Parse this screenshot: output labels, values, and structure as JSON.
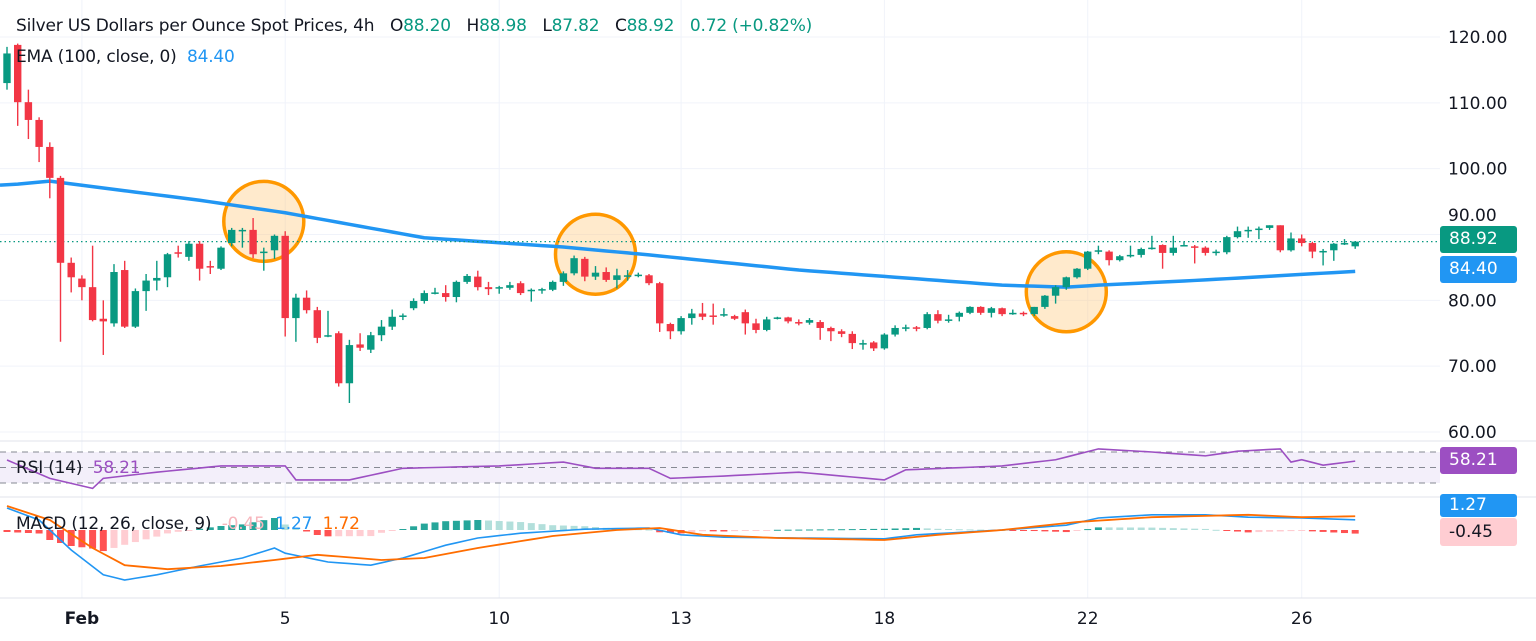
{
  "header": {
    "symbol_title": "Silver US Dollars per Ounce Spot Prices, 4h",
    "open_label": "O",
    "open": "88.20",
    "high_label": "H",
    "high": "88.98",
    "low_label": "L",
    "low": "87.82",
    "close_label": "C",
    "close": "88.92",
    "change": "0.72 (+0.82%)"
  },
  "ema_legend": {
    "label": "EMA (100, close, 0)",
    "value": "84.40"
  },
  "rsi_legend": {
    "label": "RSI (14)",
    "value": "58.21"
  },
  "macd_legend": {
    "label": "MACD (12, 26, close, 9)",
    "histogram": "-0.45",
    "macd": "1.27",
    "signal": "1.72"
  },
  "badges": {
    "last_price": "88.92",
    "ema": "84.40",
    "rsi": "58.21",
    "macd": "1.27",
    "histogram": "-0.45"
  },
  "colors": {
    "up": "#089981",
    "down": "#f23645",
    "ema": "#2196f3",
    "rsi": "#9c4fc2",
    "macd": "#2196f3",
    "signal": "#ff6d00",
    "highlight": "#ff9800"
  },
  "chart_data": {
    "type": "candlestick",
    "price_axis": {
      "ticks": [
        "120.00",
        "110.00",
        "100.00",
        "90.00",
        "80.00",
        "70.00",
        "60.00"
      ],
      "tick_values": [
        120,
        110,
        100,
        90,
        80,
        70,
        60
      ],
      "range": [
        60,
        120
      ]
    },
    "time_axis": {
      "labels": [
        [
          "Feb",
          7
        ],
        [
          "5",
          26
        ],
        [
          "10",
          46
        ],
        [
          "13",
          63
        ],
        [
          "18",
          82
        ],
        [
          "22",
          101
        ],
        [
          "26",
          121
        ]
      ]
    },
    "grid": true,
    "candles_ohlc": [
      [
        113,
        118.5,
        112,
        117.5
      ],
      [
        118.8,
        119,
        106.5,
        110.1
      ],
      [
        110.1,
        112,
        104.5,
        107.4
      ],
      [
        107.4,
        107.8,
        101,
        103.3
      ],
      [
        103.3,
        104,
        95.5,
        98.6
      ],
      [
        98.6,
        98.9,
        73.7,
        85.7
      ],
      [
        85.7,
        86.5,
        81.2,
        83.5
      ],
      [
        83.3,
        83.8,
        80,
        82
      ],
      [
        82,
        88.3,
        76.8,
        77
      ],
      [
        77.2,
        80,
        71.7,
        76.8
      ],
      [
        76.5,
        85.5,
        76,
        84.3
      ],
      [
        84.6,
        86,
        75.8,
        76
      ],
      [
        76,
        81.8,
        75.8,
        81.4
      ],
      [
        81.4,
        84,
        78.4,
        83
      ],
      [
        83,
        86,
        81.5,
        83.4
      ],
      [
        83.5,
        87.2,
        82,
        87
      ],
      [
        87.3,
        88.3,
        86.5,
        87.2
      ],
      [
        86.6,
        89,
        86,
        88.6
      ],
      [
        88.6,
        89,
        83,
        84.8
      ],
      [
        85.2,
        86,
        84,
        85
      ],
      [
        84.8,
        88.2,
        84.6,
        88
      ],
      [
        88.7,
        91,
        88.2,
        90.7
      ],
      [
        90.6,
        91,
        88,
        90.7
      ],
      [
        90.7,
        92.5,
        86.4,
        87
      ],
      [
        87.2,
        88,
        84.5,
        87.4
      ],
      [
        87.6,
        90,
        86.3,
        89.8
      ],
      [
        89.8,
        90.5,
        74.5,
        77.3
      ],
      [
        77.3,
        81,
        73.7,
        80.4
      ],
      [
        80.4,
        81.5,
        78,
        78.5
      ],
      [
        78.5,
        79,
        73.5,
        74.3
      ],
      [
        74.5,
        78.4,
        74.4,
        74.7
      ],
      [
        75,
        75.3,
        66.9,
        67.4
      ],
      [
        67.4,
        74,
        64.4,
        73.2
      ],
      [
        73.3,
        75,
        72.3,
        72.8
      ],
      [
        72.5,
        75.2,
        72,
        74.7
      ],
      [
        74.7,
        77,
        73.8,
        76
      ],
      [
        76,
        78.6,
        75.5,
        77.5
      ],
      [
        77.6,
        78,
        77,
        77.7
      ],
      [
        78.8,
        80.3,
        78.5,
        79.9
      ],
      [
        79.9,
        81.5,
        79.5,
        81.1
      ],
      [
        81.1,
        81.9,
        80.9,
        81.2
      ],
      [
        81.1,
        82.3,
        79.8,
        80.5
      ],
      [
        80.5,
        83,
        79.7,
        82.8
      ],
      [
        82.8,
        84,
        82.5,
        83.7
      ],
      [
        83.6,
        84.5,
        81.5,
        82
      ],
      [
        82,
        82.8,
        80.8,
        81.7
      ],
      [
        81.8,
        82.2,
        81,
        82
      ],
      [
        81.9,
        82.8,
        81.6,
        82.3
      ],
      [
        82.6,
        82.9,
        80.8,
        81.1
      ],
      [
        81.5,
        81.8,
        79.8,
        81.6
      ],
      [
        81.5,
        81.9,
        81,
        81.7
      ],
      [
        81.6,
        83,
        81.4,
        82.8
      ],
      [
        82.8,
        84.4,
        82.2,
        84.1
      ],
      [
        84.1,
        86.8,
        83.8,
        86.4
      ],
      [
        86.3,
        86.6,
        82.9,
        83.6
      ],
      [
        83.6,
        85.2,
        83.1,
        84.2
      ],
      [
        84.3,
        85,
        82.8,
        83.1
      ],
      [
        83.1,
        84.8,
        81.8,
        83.8
      ],
      [
        83.8,
        84.6,
        83,
        83.8
      ],
      [
        83.8,
        84.2,
        83.5,
        83.9
      ],
      [
        83.8,
        84,
        82.3,
        82.6
      ],
      [
        82.6,
        82.8,
        75.2,
        76.5
      ],
      [
        76.4,
        76.6,
        74.1,
        75.3
      ],
      [
        75.3,
        77.6,
        74.8,
        77.3
      ],
      [
        77.3,
        78.7,
        76.3,
        78
      ],
      [
        78,
        79.6,
        77,
        77.5
      ],
      [
        77.7,
        79.5,
        76.3,
        77.6
      ],
      [
        77.7,
        78.8,
        77.5,
        77.9
      ],
      [
        77.6,
        77.8,
        77,
        77.2
      ],
      [
        78.2,
        78.6,
        74.8,
        76.5
      ],
      [
        76.5,
        77.2,
        75,
        75.5
      ],
      [
        75.5,
        77.5,
        75.3,
        77.1
      ],
      [
        77.3,
        77.5,
        77.1,
        77.4
      ],
      [
        77.4,
        77.5,
        76.5,
        76.8
      ],
      [
        76.7,
        77.1,
        76.2,
        76.6
      ],
      [
        76.6,
        77.3,
        76.3,
        77
      ],
      [
        76.7,
        77,
        74,
        75.8
      ],
      [
        75.8,
        76,
        73.8,
        75.3
      ],
      [
        75.3,
        75.6,
        74.4,
        74.9
      ],
      [
        74.9,
        75.3,
        72.6,
        73.5
      ],
      [
        73.4,
        74,
        72.5,
        73.5
      ],
      [
        73.6,
        73.8,
        72.3,
        72.7
      ],
      [
        72.7,
        75,
        72.5,
        74.8
      ],
      [
        74.8,
        76.2,
        74.5,
        75.8
      ],
      [
        75.8,
        76.3,
        75.3,
        75.9
      ],
      [
        75.9,
        76.1,
        75.3,
        75.8
      ],
      [
        75.8,
        78.2,
        75.6,
        77.9
      ],
      [
        77.9,
        78.5,
        76.5,
        76.9
      ],
      [
        76.9,
        77.8,
        76.6,
        77.1
      ],
      [
        77.5,
        78.3,
        76.8,
        78.1
      ],
      [
        78.1,
        79.1,
        77.9,
        79
      ],
      [
        79,
        79.1,
        77.8,
        78.1
      ],
      [
        78.1,
        79,
        77.4,
        78.8
      ],
      [
        78.8,
        78.9,
        77.6,
        77.9
      ],
      [
        78,
        78.6,
        77.8,
        78.1
      ],
      [
        78.1,
        78.3,
        77.6,
        77.9
      ],
      [
        77.9,
        79,
        77.6,
        79
      ],
      [
        79,
        80.8,
        78.7,
        80.7
      ],
      [
        80.7,
        82.3,
        79.5,
        82
      ],
      [
        82,
        83.6,
        81.6,
        83.5
      ],
      [
        83.5,
        84.9,
        83.3,
        84.8
      ],
      [
        84.8,
        87.5,
        84.6,
        87.4
      ],
      [
        87.5,
        88.3,
        87,
        87.6
      ],
      [
        87.4,
        87.6,
        85.3,
        86.1
      ],
      [
        86.1,
        86.9,
        85.9,
        86.7
      ],
      [
        86.8,
        88.3,
        86.5,
        86.9
      ],
      [
        86.9,
        88,
        86.5,
        87.8
      ],
      [
        87.9,
        89.8,
        87.7,
        88
      ],
      [
        88.4,
        88.5,
        84.8,
        87.2
      ],
      [
        87.2,
        89.8,
        86.8,
        88
      ],
      [
        88.3,
        88.9,
        88.2,
        88.4
      ],
      [
        88.2,
        88.4,
        85.6,
        88
      ],
      [
        88,
        88.2,
        86.8,
        87.2
      ],
      [
        87.2,
        87.7,
        86.8,
        87.4
      ],
      [
        87.3,
        89.8,
        87,
        89.6
      ],
      [
        89.6,
        91.2,
        89.4,
        90.5
      ],
      [
        90.6,
        91.2,
        89.5,
        90.7
      ],
      [
        90.8,
        91.2,
        89.3,
        90.9
      ],
      [
        91,
        91.4,
        90.7,
        91.4
      ],
      [
        91.4,
        91.4,
        87.3,
        87.6
      ],
      [
        87.6,
        90.3,
        87.4,
        89.4
      ],
      [
        89.4,
        90,
        88.2,
        88.7
      ],
      [
        88.7,
        88.9,
        86.4,
        87.4
      ],
      [
        87.5,
        87.8,
        85.3,
        87.5
      ],
      [
        87.6,
        88.7,
        86,
        88.6
      ],
      [
        88.7,
        89.3,
        88.4,
        88.7
      ],
      [
        88.2,
        88.98,
        87.82,
        88.92
      ]
    ],
    "ema100": [
      [
        0,
        97.5
      ],
      [
        4,
        98.1
      ],
      [
        18,
        95.2
      ],
      [
        26,
        93.3
      ],
      [
        39,
        89.5
      ],
      [
        52,
        88.1
      ],
      [
        60,
        86.9
      ],
      [
        74,
        84.6
      ],
      [
        93,
        82.3
      ],
      [
        99,
        82.0
      ],
      [
        102,
        82.3
      ],
      [
        112,
        83.1
      ],
      [
        126,
        84.4
      ]
    ],
    "highlights": [
      [
        24,
        92
      ],
      [
        55,
        87
      ],
      [
        99,
        81.3
      ]
    ],
    "rsi": {
      "levels": [
        70,
        50,
        30
      ],
      "points": [
        [
          0,
          59.7
        ],
        [
          4,
          36
        ],
        [
          8,
          23
        ],
        [
          9,
          36
        ],
        [
          14,
          44
        ],
        [
          20,
          52
        ],
        [
          26,
          52
        ],
        [
          27,
          34
        ],
        [
          32,
          34
        ],
        [
          37,
          49
        ],
        [
          46,
          52
        ],
        [
          52,
          57
        ],
        [
          55,
          49
        ],
        [
          60,
          49
        ],
        [
          62,
          36
        ],
        [
          67,
          39
        ],
        [
          74,
          44
        ],
        [
          82,
          34
        ],
        [
          84,
          47
        ],
        [
          93,
          52
        ],
        [
          98,
          60
        ],
        [
          102,
          74
        ],
        [
          107,
          70
        ],
        [
          112,
          65
        ],
        [
          115,
          71
        ],
        [
          119,
          74
        ],
        [
          120,
          57
        ],
        [
          121,
          60
        ],
        [
          123,
          53
        ],
        [
          126,
          58.21
        ]
      ]
    },
    "macd": {
      "zero": 0,
      "macd_line": [
        [
          0,
          2.75
        ],
        [
          3,
          1.25
        ],
        [
          6,
          -2.5
        ],
        [
          9,
          -5.6
        ],
        [
          11,
          -6.25
        ],
        [
          14,
          -5.6
        ],
        [
          18,
          -4.5
        ],
        [
          22,
          -3.5
        ],
        [
          25,
          -2.25
        ],
        [
          26,
          -2.9
        ],
        [
          30,
          -4
        ],
        [
          34,
          -4.4
        ],
        [
          37,
          -3.5
        ],
        [
          41,
          -1.9
        ],
        [
          44,
          -1
        ],
        [
          48,
          -0.4
        ],
        [
          54,
          0.1
        ],
        [
          60,
          0.25
        ],
        [
          63,
          -0.6
        ],
        [
          67,
          -0.9
        ],
        [
          74,
          -1
        ],
        [
          82,
          -1.1
        ],
        [
          85,
          -0.6
        ],
        [
          93,
          0
        ],
        [
          99,
          0.6
        ],
        [
          102,
          1.5
        ],
        [
          107,
          1.9
        ],
        [
          112,
          1.9
        ],
        [
          116,
          1.6
        ],
        [
          121,
          1.5
        ],
        [
          126,
          1.27
        ]
      ],
      "signal_line": [
        [
          0,
          3
        ],
        [
          4,
          1.25
        ],
        [
          8,
          -2.25
        ],
        [
          11,
          -4.4
        ],
        [
          15,
          -4.9
        ],
        [
          20,
          -4.5
        ],
        [
          25,
          -3.75
        ],
        [
          29,
          -3.1
        ],
        [
          35,
          -3.75
        ],
        [
          39,
          -3.5
        ],
        [
          44,
          -2.25
        ],
        [
          51,
          -0.75
        ],
        [
          57,
          0
        ],
        [
          61,
          0.25
        ],
        [
          65,
          -0.6
        ],
        [
          72,
          -1
        ],
        [
          82,
          -1.25
        ],
        [
          87,
          -0.6
        ],
        [
          93,
          0
        ],
        [
          100,
          1
        ],
        [
          107,
          1.6
        ],
        [
          116,
          1.9
        ],
        [
          121,
          1.6
        ],
        [
          126,
          1.72
        ]
      ]
    }
  }
}
